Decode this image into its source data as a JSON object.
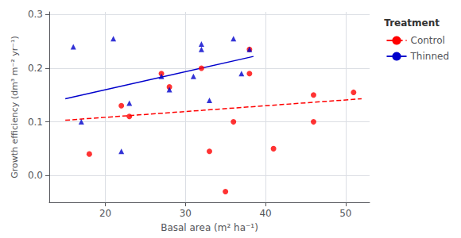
{
  "chart_data": {
    "type": "scatter",
    "xlabel": "Basal area (m² ha⁻¹)",
    "ylabel": "Growth efficiency (dm³ m⁻² yr⁻¹)",
    "xlim": [
      13,
      53
    ],
    "ylim": [
      -0.05,
      0.305
    ],
    "xticks": [
      20,
      30,
      40,
      50
    ],
    "yticks": [
      {
        "value": 0,
        "label": "0.0"
      },
      0.1,
      0.2,
      0.3
    ],
    "grid": true,
    "legend": "upper right",
    "legend_title": "Treatment",
    "series": [
      {
        "name": "Control",
        "color": "#FF0000",
        "marker": "circle",
        "line_style": "dashed",
        "x": [
          18,
          22,
          23,
          27,
          28,
          32,
          33,
          35,
          36,
          38,
          38,
          41,
          46,
          46,
          51
        ],
        "values": [
          0.04,
          0.13,
          0.11,
          0.19,
          0.165,
          0.2,
          0.045,
          -0.03,
          0.1,
          0.19,
          0.235,
          0.05,
          0.15,
          0.1,
          0.155
        ],
        "fit_x": [
          15,
          52
        ],
        "fit_values": [
          0.103,
          0.143
        ]
      },
      {
        "name": "Thinned",
        "color": "#0000CC",
        "marker": "triangle",
        "line_style": "solid",
        "x": [
          16,
          17,
          21,
          22,
          23,
          27,
          28,
          31,
          32,
          32,
          33,
          36,
          37,
          38
        ],
        "values": [
          0.24,
          0.1,
          0.255,
          0.045,
          0.135,
          0.185,
          0.16,
          0.185,
          0.245,
          0.235,
          0.14,
          0.255,
          0.19,
          0.235
        ],
        "fit_x": [
          15,
          38.5
        ],
        "fit_values": [
          0.143,
          0.222
        ]
      }
    ]
  }
}
